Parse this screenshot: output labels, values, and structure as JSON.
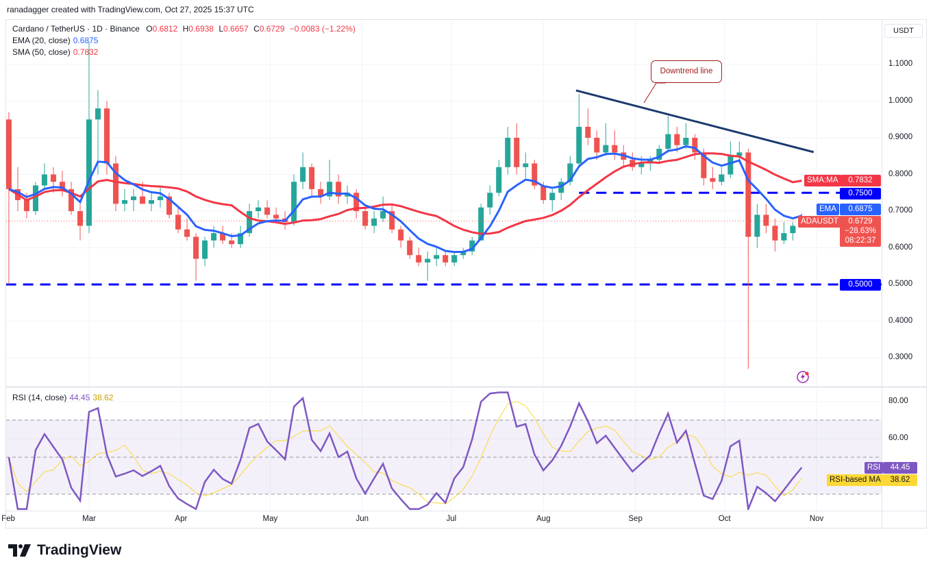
{
  "credit": "ranadagger created with TradingView.com, Oct 27, 2025 15:37 UTC",
  "legend": {
    "symbol": "Cardano / TetherUS · 1D · Binance",
    "o_label": "O",
    "o": "0.6812",
    "h_label": "H",
    "h": "0.6938",
    "l_label": "L",
    "l": "0.6657",
    "c_label": "C",
    "c": "0.6729",
    "change": "−0.0083 (−1.22%)",
    "ema_label": "EMA (20, close)",
    "ema_value": "0.6875",
    "sma_label": "SMA (50, close)",
    "sma_value": "0.7832",
    "rsi_label": "RSI (14, close)",
    "rsi_value": "44.45",
    "rsi_ma_value": "38.62"
  },
  "price_axis": {
    "currency": "USDT",
    "ticks": [
      "1.1000",
      "1.0000",
      "0.9000",
      "0.8000",
      "0.7000",
      "0.6000",
      "0.5000",
      "0.4000",
      "0.3000"
    ],
    "tags": {
      "sma_name": "SMA:MA",
      "sma_value": "0.7832",
      "level_750": "0.7500",
      "ema_name": "EMA",
      "ema_value": "0.6875",
      "symbol_name": "ADAUSDT",
      "last_price": "0.6729",
      "change_pct": "−28.63%",
      "countdown": "08:22:37",
      "level_500": "0.5000"
    }
  },
  "rsi_axis": {
    "ticks": [
      "80.00",
      "60.00"
    ],
    "rsi_name": "RSI",
    "rsi_value": "44.45",
    "ma_name": "RSI-based MA",
    "ma_value": "38.62"
  },
  "time_axis": [
    "Feb",
    "Mar",
    "Apr",
    "May",
    "Jun",
    "Jul",
    "Aug",
    "Sep",
    "Oct",
    "Nov"
  ],
  "annotation": {
    "callout": "Downtrend line"
  },
  "brand": "TradingView",
  "colors": {
    "up": "#26a69a",
    "down": "#ef5350",
    "ema": "#2962ff",
    "sma": "#f23645",
    "level": "#0000ff",
    "trendline": "#1c3a6e",
    "rsi": "#7e57c2",
    "rsi_ma": "#fdd835",
    "callout": "#a01a1a"
  },
  "icons": {
    "alert": "lightning-alert-icon",
    "logo": "tradingview-logo-icon"
  },
  "chart_data": {
    "type": "candlestick",
    "symbol": "ADAUSDT",
    "interval": "1D",
    "ylim": [
      0.25,
      1.17
    ],
    "grid": true,
    "columns": [
      "date",
      "open",
      "high",
      "low",
      "close"
    ],
    "candles": [
      [
        "2025-02-02",
        0.95,
        0.97,
        0.5,
        0.76
      ],
      [
        "2025-02-05",
        0.76,
        0.82,
        0.7,
        0.73
      ],
      [
        "2025-02-08",
        0.73,
        0.75,
        0.68,
        0.7
      ],
      [
        "2025-02-11",
        0.7,
        0.78,
        0.69,
        0.77
      ],
      [
        "2025-02-14",
        0.77,
        0.83,
        0.76,
        0.8
      ],
      [
        "2025-02-17",
        0.8,
        0.82,
        0.75,
        0.78
      ],
      [
        "2025-02-20",
        0.78,
        0.81,
        0.74,
        0.76
      ],
      [
        "2025-02-23",
        0.76,
        0.78,
        0.69,
        0.7
      ],
      [
        "2025-02-26",
        0.7,
        0.72,
        0.62,
        0.66
      ],
      [
        "2025-03-01",
        0.66,
        1.16,
        0.64,
        0.95
      ],
      [
        "2025-03-04",
        0.95,
        1.03,
        0.8,
        0.98
      ],
      [
        "2025-03-07",
        0.98,
        1.0,
        0.8,
        0.83
      ],
      [
        "2025-03-10",
        0.83,
        0.85,
        0.7,
        0.72
      ],
      [
        "2025-03-13",
        0.72,
        0.76,
        0.7,
        0.73
      ],
      [
        "2025-03-16",
        0.73,
        0.76,
        0.7,
        0.74
      ],
      [
        "2025-03-19",
        0.74,
        0.78,
        0.72,
        0.72
      ],
      [
        "2025-03-22",
        0.72,
        0.75,
        0.7,
        0.73
      ],
      [
        "2025-03-25",
        0.73,
        0.77,
        0.71,
        0.74
      ],
      [
        "2025-03-28",
        0.74,
        0.75,
        0.68,
        0.69
      ],
      [
        "2025-03-31",
        0.69,
        0.71,
        0.64,
        0.65
      ],
      [
        "2025-04-03",
        0.65,
        0.68,
        0.62,
        0.63
      ],
      [
        "2025-04-06",
        0.63,
        0.64,
        0.51,
        0.57
      ],
      [
        "2025-04-09",
        0.57,
        0.63,
        0.55,
        0.62
      ],
      [
        "2025-04-12",
        0.62,
        0.66,
        0.6,
        0.64
      ],
      [
        "2025-04-15",
        0.64,
        0.66,
        0.61,
        0.62
      ],
      [
        "2025-04-18",
        0.62,
        0.64,
        0.6,
        0.61
      ],
      [
        "2025-04-21",
        0.61,
        0.66,
        0.6,
        0.64
      ],
      [
        "2025-04-24",
        0.64,
        0.72,
        0.63,
        0.7
      ],
      [
        "2025-04-27",
        0.7,
        0.73,
        0.68,
        0.71
      ],
      [
        "2025-04-30",
        0.71,
        0.73,
        0.68,
        0.69
      ],
      [
        "2025-05-03",
        0.69,
        0.71,
        0.67,
        0.68
      ],
      [
        "2025-05-06",
        0.68,
        0.7,
        0.65,
        0.67
      ],
      [
        "2025-05-09",
        0.67,
        0.8,
        0.66,
        0.78
      ],
      [
        "2025-05-12",
        0.78,
        0.86,
        0.76,
        0.82
      ],
      [
        "2025-05-15",
        0.82,
        0.83,
        0.74,
        0.76
      ],
      [
        "2025-05-18",
        0.76,
        0.78,
        0.72,
        0.74
      ],
      [
        "2025-05-21",
        0.74,
        0.84,
        0.73,
        0.78
      ],
      [
        "2025-05-24",
        0.78,
        0.8,
        0.72,
        0.74
      ],
      [
        "2025-05-27",
        0.74,
        0.77,
        0.72,
        0.75
      ],
      [
        "2025-05-30",
        0.75,
        0.76,
        0.68,
        0.7
      ],
      [
        "2025-06-02",
        0.7,
        0.71,
        0.65,
        0.66
      ],
      [
        "2025-06-05",
        0.66,
        0.7,
        0.64,
        0.68
      ],
      [
        "2025-06-08",
        0.68,
        0.74,
        0.67,
        0.7
      ],
      [
        "2025-06-11",
        0.7,
        0.72,
        0.64,
        0.65
      ],
      [
        "2025-06-14",
        0.65,
        0.66,
        0.6,
        0.62
      ],
      [
        "2025-06-17",
        0.62,
        0.63,
        0.57,
        0.58
      ],
      [
        "2025-06-20",
        0.58,
        0.6,
        0.55,
        0.56
      ],
      [
        "2025-06-23",
        0.56,
        0.59,
        0.51,
        0.57
      ],
      [
        "2025-06-26",
        0.57,
        0.6,
        0.55,
        0.58
      ],
      [
        "2025-06-29",
        0.58,
        0.59,
        0.55,
        0.56
      ],
      [
        "2025-07-02",
        0.56,
        0.59,
        0.55,
        0.58
      ],
      [
        "2025-07-05",
        0.58,
        0.6,
        0.57,
        0.59
      ],
      [
        "2025-07-08",
        0.59,
        0.63,
        0.58,
        0.62
      ],
      [
        "2025-07-11",
        0.62,
        0.72,
        0.62,
        0.71
      ],
      [
        "2025-07-14",
        0.71,
        0.77,
        0.69,
        0.75
      ],
      [
        "2025-07-17",
        0.75,
        0.84,
        0.74,
        0.82
      ],
      [
        "2025-07-20",
        0.82,
        0.93,
        0.8,
        0.9
      ],
      [
        "2025-07-23",
        0.9,
        0.94,
        0.8,
        0.82
      ],
      [
        "2025-07-26",
        0.82,
        0.86,
        0.79,
        0.83
      ],
      [
        "2025-07-29",
        0.83,
        0.84,
        0.76,
        0.77
      ],
      [
        "2025-08-01",
        0.77,
        0.78,
        0.72,
        0.73
      ],
      [
        "2025-08-04",
        0.73,
        0.76,
        0.7,
        0.75
      ],
      [
        "2025-08-07",
        0.75,
        0.79,
        0.73,
        0.78
      ],
      [
        "2025-08-10",
        0.78,
        0.85,
        0.77,
        0.83
      ],
      [
        "2025-08-13",
        0.83,
        1.02,
        0.82,
        0.93
      ],
      [
        "2025-08-16",
        0.93,
        0.98,
        0.88,
        0.9
      ],
      [
        "2025-08-19",
        0.9,
        0.92,
        0.84,
        0.86
      ],
      [
        "2025-08-22",
        0.86,
        0.94,
        0.85,
        0.88
      ],
      [
        "2025-08-25",
        0.88,
        0.92,
        0.84,
        0.86
      ],
      [
        "2025-08-28",
        0.86,
        0.88,
        0.82,
        0.84
      ],
      [
        "2025-08-31",
        0.84,
        0.86,
        0.81,
        0.82
      ],
      [
        "2025-09-03",
        0.82,
        0.85,
        0.8,
        0.83
      ],
      [
        "2025-09-06",
        0.83,
        0.85,
        0.81,
        0.84
      ],
      [
        "2025-09-09",
        0.84,
        0.88,
        0.83,
        0.87
      ],
      [
        "2025-09-12",
        0.87,
        0.96,
        0.86,
        0.91
      ],
      [
        "2025-09-15",
        0.91,
        0.93,
        0.86,
        0.88
      ],
      [
        "2025-09-18",
        0.88,
        0.94,
        0.87,
        0.9
      ],
      [
        "2025-09-21",
        0.9,
        0.91,
        0.84,
        0.86
      ],
      [
        "2025-09-24",
        0.86,
        0.87,
        0.77,
        0.79
      ],
      [
        "2025-09-27",
        0.79,
        0.82,
        0.76,
        0.78
      ],
      [
        "2025-09-30",
        0.78,
        0.82,
        0.77,
        0.8
      ],
      [
        "2025-10-03",
        0.8,
        0.89,
        0.79,
        0.85
      ],
      [
        "2025-10-06",
        0.85,
        0.89,
        0.83,
        0.86
      ],
      [
        "2025-10-09",
        0.86,
        0.87,
        0.27,
        0.63
      ],
      [
        "2025-10-12",
        0.63,
        0.72,
        0.6,
        0.69
      ],
      [
        "2025-10-15",
        0.69,
        0.72,
        0.64,
        0.66
      ],
      [
        "2025-10-18",
        0.66,
        0.68,
        0.59,
        0.62
      ],
      [
        "2025-10-21",
        0.62,
        0.67,
        0.61,
        0.64
      ],
      [
        "2025-10-24",
        0.64,
        0.67,
        0.62,
        0.66
      ],
      [
        "2025-10-27",
        0.6812,
        0.6938,
        0.6657,
        0.6729
      ]
    ],
    "indicators": {
      "ema": {
        "period": 20,
        "last": 0.6875
      },
      "sma": {
        "period": 50,
        "last": 0.7832
      },
      "rsi": {
        "period": 14,
        "last": 44.45,
        "ma_last": 38.62,
        "bands": [
          70,
          50,
          30
        ],
        "ylim": [
          20,
          85
        ]
      }
    },
    "drawings": {
      "horizontal_levels": [
        {
          "price": 0.75,
          "from": "2025-08-13"
        },
        {
          "price": 0.5,
          "from": "2025-02-01"
        }
      ],
      "trendline": {
        "from": [
          "2025-08-12",
          1.029
        ],
        "to": [
          "2025-10-31",
          0.861
        ]
      }
    }
  }
}
